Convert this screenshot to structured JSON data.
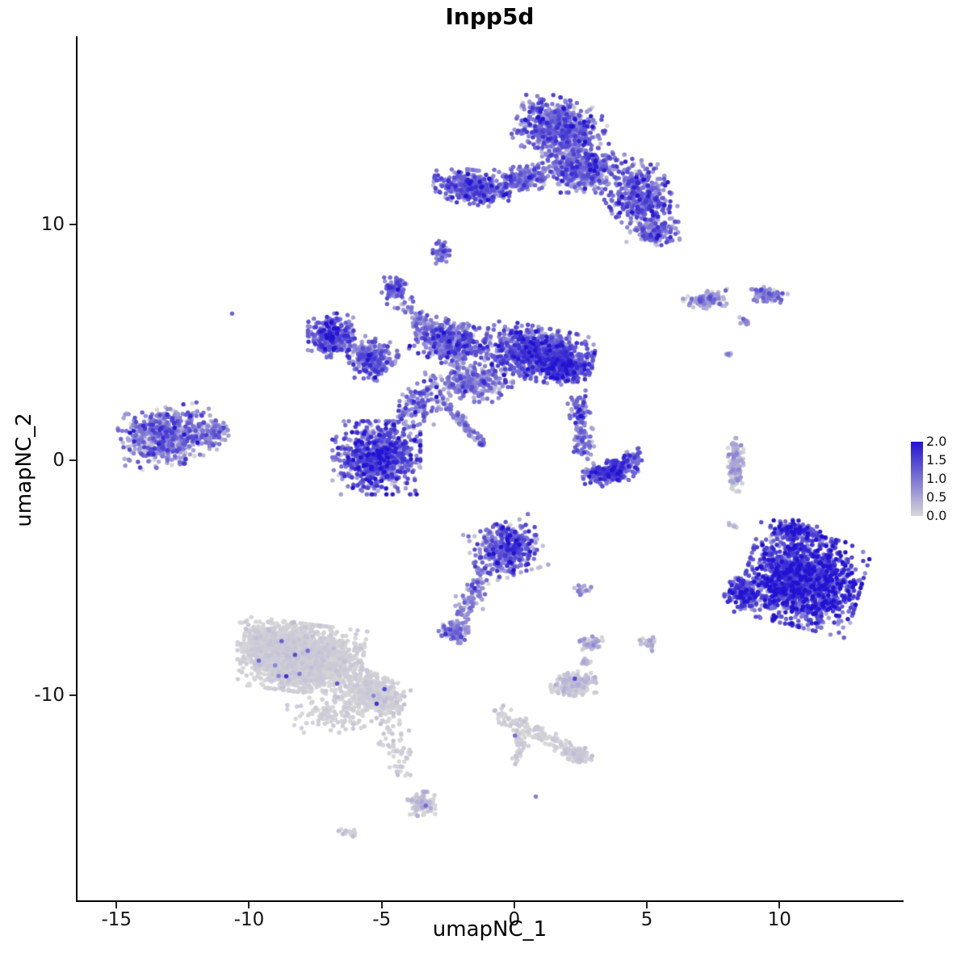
{
  "title": "Inpp5d",
  "axes": {
    "x_label": "umapNC_1",
    "y_label": "umapNC_2",
    "x_ticks": [
      -15,
      -10,
      -5,
      0,
      5,
      10
    ],
    "y_ticks": [
      10,
      0,
      -10
    ]
  },
  "legend": {
    "tick_labels": [
      "2.0",
      "1.5",
      "1.0",
      "0.5",
      "0.0"
    ],
    "high_color": "#2212d2",
    "low_color": "#d7d7d7"
  },
  "chart_data": {
    "type": "scatter",
    "title": "Inpp5d",
    "xlabel": "umapNC_1",
    "ylabel": "umapNC_2",
    "xlim": [
      -16.5,
      14.65
    ],
    "ylim": [
      -18.7,
      18.0
    ],
    "x_ticks": [
      -15,
      -10,
      -5,
      0,
      5,
      10
    ],
    "y_ticks": [
      10,
      0,
      -10
    ],
    "grid": false,
    "legend_position": "right",
    "color_scale": {
      "low": "#d7d7d7",
      "high": "#2212d2",
      "domain": [
        0,
        2
      ],
      "legend_ticks": [
        2.0,
        1.5,
        1.0,
        0.5,
        0.0
      ]
    },
    "point_radius_px": 2.7,
    "clusters": [
      {
        "name": "top-main-upper",
        "n": 650,
        "cx": 1.7,
        "cy": 14.1,
        "rx": 1.6,
        "ry": 1.2,
        "rot": -20,
        "e": 0.95,
        "s": 0.45
      },
      {
        "name": "top-main-lower",
        "n": 450,
        "cx": 2.6,
        "cy": 12.4,
        "rx": 1.5,
        "ry": 1.0,
        "e": 0.9,
        "s": 0.45
      },
      {
        "name": "top-right-arm",
        "n": 420,
        "cx": 4.7,
        "cy": 11.2,
        "rx": 1.2,
        "ry": 1.5,
        "rot": 25,
        "e": 1.0,
        "s": 0.45
      },
      {
        "name": "top-right-arm-tip",
        "n": 140,
        "cx": 5.3,
        "cy": 9.7,
        "rx": 0.9,
        "ry": 0.55,
        "e": 0.95,
        "s": 0.4
      },
      {
        "name": "top-left-arm",
        "n": 380,
        "cx": -1.6,
        "cy": 11.6,
        "rx": 1.4,
        "ry": 0.7,
        "rot": -8,
        "e": 1.0,
        "s": 0.45
      },
      {
        "name": "top-bridge",
        "n": 180,
        "cx": 0.4,
        "cy": 12.0,
        "rx": 1.2,
        "ry": 0.55,
        "rot": 10,
        "e": 0.85,
        "s": 0.4
      },
      {
        "name": "small-below-top",
        "n": 45,
        "cx": -2.8,
        "cy": 8.8,
        "rx": 0.4,
        "ry": 0.5,
        "e": 0.9,
        "s": 0.35
      },
      {
        "name": "upper-mid-small",
        "n": 70,
        "cx": -4.5,
        "cy": 7.3,
        "rx": 0.5,
        "ry": 0.55,
        "e": 1.0,
        "s": 0.4
      },
      {
        "name": "upper-mid-trail",
        "type": "line",
        "n": 90,
        "x1": -4.3,
        "y1": 6.8,
        "x2": -2.6,
        "y2": 5.0,
        "w": 0.22,
        "e": 0.8,
        "s": 0.4
      },
      {
        "name": "central-left-blob",
        "n": 320,
        "cx": -6.9,
        "cy": 5.3,
        "rx": 0.85,
        "ry": 0.9,
        "e": 1.1,
        "s": 0.45
      },
      {
        "name": "central-left-blob2",
        "n": 220,
        "cx": -5.4,
        "cy": 4.2,
        "rx": 0.8,
        "ry": 0.8,
        "e": 0.95,
        "s": 0.45
      },
      {
        "name": "central-left-bridge",
        "type": "line",
        "n": 80,
        "x1": -6.3,
        "y1": 4.8,
        "x2": -4.6,
        "y2": 4.4,
        "w": 0.28,
        "e": 0.9,
        "s": 0.4
      },
      {
        "name": "central-main",
        "n": 1000,
        "cx": 0.9,
        "cy": 4.5,
        "rx": 2.0,
        "ry": 1.1,
        "rot": -12,
        "e": 1.1,
        "s": 0.45
      },
      {
        "name": "central-main-dense",
        "n": 250,
        "cx": 1.9,
        "cy": 4.0,
        "rx": 1.0,
        "ry": 0.65,
        "e": 1.3,
        "s": 0.4
      },
      {
        "name": "central-mid",
        "n": 450,
        "cx": -2.4,
        "cy": 5.0,
        "rx": 1.4,
        "ry": 0.9,
        "rot": -15,
        "e": 0.9,
        "s": 0.45
      },
      {
        "name": "central-lower-scatter",
        "n": 280,
        "cx": -1.6,
        "cy": 3.3,
        "rx": 1.5,
        "ry": 0.8,
        "e": 0.75,
        "s": 0.45
      },
      {
        "name": "central-streak-down",
        "type": "line",
        "n": 90,
        "x1": -2.8,
        "y1": 2.6,
        "x2": -1.3,
        "y2": 0.8,
        "w": 0.12,
        "e": 0.7,
        "s": 0.35
      },
      {
        "name": "streak-end-dot",
        "n": 12,
        "cx": -1.25,
        "cy": 0.7,
        "rx": 0.12,
        "ry": 0.12,
        "e": 1.0,
        "s": 0.3
      },
      {
        "name": "left-mid-round",
        "n": 850,
        "cx": -5.2,
        "cy": 0.1,
        "rx": 1.6,
        "ry": 1.5,
        "e": 1.1,
        "s": 0.5
      },
      {
        "name": "left-mid-extension",
        "type": "line",
        "n": 130,
        "x1": -4.2,
        "y1": 1.5,
        "x2": -3.2,
        "y2": 3.0,
        "w": 0.32,
        "e": 0.9,
        "s": 0.4
      },
      {
        "name": "far-left",
        "n": 650,
        "cx": -13.1,
        "cy": 1.0,
        "rx": 1.7,
        "ry": 1.2,
        "rot": 10,
        "e": 0.75,
        "s": 0.5
      },
      {
        "name": "far-left-tip",
        "n": 90,
        "cx": -11.3,
        "cy": 1.2,
        "rx": 0.65,
        "ry": 0.5,
        "e": 0.6,
        "s": 0.4
      },
      {
        "name": "isolated-dot-upper-left",
        "n": 1,
        "cx": -10.6,
        "cy": 6.2,
        "rx": 0.05,
        "ry": 0.05,
        "e": 1.2,
        "s": 0
      },
      {
        "name": "mid-right-streak",
        "type": "line",
        "n": 130,
        "x1": 2.4,
        "y1": 2.6,
        "x2": 2.7,
        "y2": 0.2,
        "w": 0.18,
        "e": 0.9,
        "s": 0.4
      },
      {
        "name": "mid-right-blob",
        "n": 260,
        "cx": 3.6,
        "cy": -0.5,
        "rx": 1.0,
        "ry": 0.5,
        "rot": 15,
        "e": 1.2,
        "s": 0.4
      },
      {
        "name": "mid-right-hook",
        "type": "line",
        "n": 50,
        "x1": 4.2,
        "y1": -0.4,
        "x2": 4.6,
        "y2": 0.3,
        "w": 0.15,
        "e": 1.0,
        "s": 0.4
      },
      {
        "name": "right-small-1",
        "n": 110,
        "cx": 7.2,
        "cy": 6.8,
        "rx": 0.85,
        "ry": 0.35,
        "rot": 8,
        "e": 0.55,
        "s": 0.4
      },
      {
        "name": "right-small-2",
        "n": 95,
        "cx": 9.6,
        "cy": 7.0,
        "rx": 0.7,
        "ry": 0.35,
        "rot": -10,
        "e": 0.6,
        "s": 0.45
      },
      {
        "name": "right-small-3",
        "n": 14,
        "cx": 8.7,
        "cy": 5.9,
        "rx": 0.22,
        "ry": 0.16,
        "e": 0.5,
        "s": 0.3
      },
      {
        "name": "right-small-4",
        "n": 8,
        "cx": 8.1,
        "cy": 4.5,
        "rx": 0.16,
        "ry": 0.13,
        "e": 0.4,
        "s": 0.3
      },
      {
        "name": "right-vert-streak",
        "n": 140,
        "cx": 8.35,
        "cy": -0.2,
        "rx": 0.28,
        "ry": 1.1,
        "e": 0.25,
        "s": 0.3
      },
      {
        "name": "right-vert-dot",
        "n": 6,
        "cx": 8.3,
        "cy": -2.8,
        "rx": 0.12,
        "ry": 0.1,
        "e": 0.2,
        "s": 0.2
      },
      {
        "name": "bottom-right-main",
        "n": 1600,
        "cx": 10.9,
        "cy": -5.1,
        "rx": 2.1,
        "ry": 1.9,
        "rot": -15,
        "e": 1.35,
        "s": 0.5
      },
      {
        "name": "bottom-right-left-tip",
        "n": 180,
        "cx": 8.7,
        "cy": -5.6,
        "rx": 0.75,
        "ry": 0.75,
        "e": 1.2,
        "s": 0.5
      },
      {
        "name": "bottom-right-top",
        "n": 160,
        "cx": 10.6,
        "cy": -3.0,
        "rx": 0.9,
        "ry": 0.45,
        "e": 1.2,
        "s": 0.5
      },
      {
        "name": "bottom-center-purple",
        "n": 420,
        "cx": -0.3,
        "cy": -3.8,
        "rx": 1.3,
        "ry": 1.1,
        "rot": 20,
        "e": 1.0,
        "s": 0.5
      },
      {
        "name": "bottom-center-arm",
        "type": "line",
        "n": 90,
        "x1": -1.0,
        "y1": -4.8,
        "x2": -2.1,
        "y2": -6.9,
        "w": 0.2,
        "e": 0.75,
        "s": 0.4
      },
      {
        "name": "bottom-center-blob2",
        "n": 130,
        "cx": -2.3,
        "cy": -7.3,
        "rx": 0.55,
        "ry": 0.45,
        "e": 0.6,
        "s": 0.45
      },
      {
        "name": "small-gray-1",
        "n": 22,
        "cx": 2.6,
        "cy": -5.5,
        "rx": 0.32,
        "ry": 0.26,
        "e": 0.5,
        "s": 0.4
      },
      {
        "name": "small-gray-2",
        "n": 45,
        "cx": 2.9,
        "cy": -7.8,
        "rx": 0.42,
        "ry": 0.3,
        "e": 0.3,
        "s": 0.3
      },
      {
        "name": "small-gray-3",
        "n": 30,
        "cx": 5.1,
        "cy": -7.8,
        "rx": 0.36,
        "ry": 0.3,
        "e": 0.15,
        "s": 0.2
      },
      {
        "name": "gray-main",
        "n": 2000,
        "cx": -8.0,
        "cy": -8.4,
        "rx": 2.2,
        "ry": 1.4,
        "rot": -8,
        "e": 0.03,
        "s": 0.07,
        "spike": 0.004
      },
      {
        "name": "gray-main-left",
        "n": 400,
        "cx": -9.4,
        "cy": -7.8,
        "rx": 1.0,
        "ry": 0.9,
        "e": 0.03,
        "s": 0.07
      },
      {
        "name": "gray-tail",
        "n": 450,
        "cx": -5.3,
        "cy": -9.9,
        "rx": 1.2,
        "ry": 0.75,
        "rot": -25,
        "e": 0.03,
        "s": 0.07,
        "spike": 0.004
      },
      {
        "name": "gray-sparse-below",
        "n": 130,
        "cx": -6.8,
        "cy": -10.8,
        "rx": 1.7,
        "ry": 0.75,
        "e": 0.03,
        "s": 0.07
      },
      {
        "name": "gray-trail-down",
        "type": "line",
        "n": 70,
        "x1": -4.9,
        "y1": -10.8,
        "x2": -4.1,
        "y2": -13.3,
        "w": 0.3,
        "e": 0.05,
        "s": 0.1
      },
      {
        "name": "gray-bottom-blob",
        "n": 110,
        "cx": -3.5,
        "cy": -14.6,
        "rx": 0.5,
        "ry": 0.5,
        "e": 0.1,
        "s": 0.18,
        "spike": 0.01
      },
      {
        "name": "gray-bottom-tiny",
        "n": 14,
        "cx": -6.3,
        "cy": -15.8,
        "rx": 0.32,
        "ry": 0.2,
        "e": 0.05,
        "s": 0.1
      },
      {
        "name": "gray-right-blob",
        "n": 230,
        "cx": 2.2,
        "cy": -9.5,
        "rx": 0.85,
        "ry": 0.5,
        "rot": 10,
        "e": 0.1,
        "s": 0.15,
        "spike": 0.01
      },
      {
        "name": "gray-right-tiny",
        "n": 20,
        "cx": 2.7,
        "cy": -8.6,
        "rx": 0.22,
        "ry": 0.16,
        "e": 0.2,
        "s": 0.2
      },
      {
        "name": "bottom-streak",
        "type": "line",
        "n": 110,
        "x1": -0.7,
        "y1": -10.7,
        "x2": 2.1,
        "y2": -12.3,
        "w": 0.15,
        "e": 0.05,
        "s": 0.08
      },
      {
        "name": "bottom-streak-blob",
        "n": 140,
        "cx": 2.4,
        "cy": -12.5,
        "rx": 0.55,
        "ry": 0.32,
        "rot": -15,
        "e": 0.05,
        "s": 0.08
      },
      {
        "name": "bottom-streak-branch",
        "type": "line",
        "n": 40,
        "x1": 0.3,
        "y1": -11.6,
        "x2": 0.1,
        "y2": -12.8,
        "w": 0.12,
        "e": 0.05,
        "s": 0.08
      },
      {
        "name": "purple-dot-1",
        "n": 1,
        "cx": 0.0,
        "cy": -11.7,
        "rx": 0.05,
        "ry": 0.05,
        "e": 1.1,
        "s": 0
      },
      {
        "name": "purple-dot-2",
        "n": 1,
        "cx": 0.8,
        "cy": -14.3,
        "rx": 0.05,
        "ry": 0.05,
        "e": 0.9,
        "s": 0
      },
      {
        "name": "gray-dots-right",
        "n": 3,
        "cx": 8.1,
        "cy": -2.7,
        "rx": 0.28,
        "ry": 0.12,
        "e": 0.3,
        "s": 0.2
      }
    ]
  }
}
